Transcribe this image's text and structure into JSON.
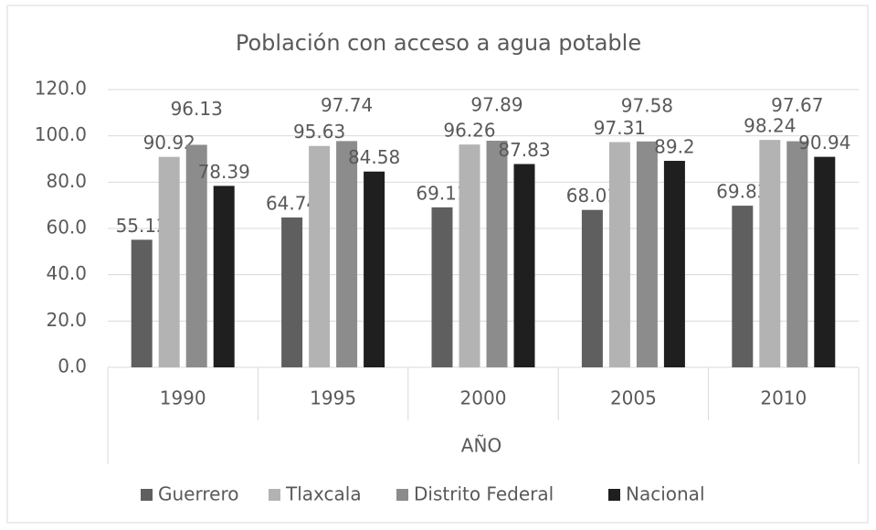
{
  "chart_data": {
    "type": "bar",
    "title": "Población con acceso a agua potable",
    "x_label": "AÑO",
    "categories": [
      "1990",
      "1995",
      "2000",
      "2005",
      "2010"
    ],
    "series": [
      {
        "name": "Guerrero",
        "color": "#5f5f5f",
        "values": [
          55.12,
          64.74,
          69.11,
          68.01,
          69.83
        ]
      },
      {
        "name": "Tlaxcala",
        "color": "#b3b3b3",
        "values": [
          90.92,
          95.63,
          96.26,
          97.31,
          98.24
        ]
      },
      {
        "name": "Distrito Federal",
        "color": "#8c8c8c",
        "values": [
          96.13,
          97.74,
          97.89,
          97.58,
          97.67
        ]
      },
      {
        "name": "Nacional",
        "color": "#1f1f1f",
        "values": [
          78.39,
          84.58,
          87.83,
          89.2,
          90.94
        ]
      }
    ],
    "ylim": [
      0,
      120
    ],
    "yticks": [
      {
        "value": 0,
        "label": "0.0"
      },
      {
        "value": 20,
        "label": "20.0"
      },
      {
        "value": 40,
        "label": "40.0"
      },
      {
        "value": 60,
        "label": "60.0"
      },
      {
        "value": 80,
        "label": "80.0"
      },
      {
        "value": 100,
        "label": "100.0"
      },
      {
        "value": 120,
        "label": "120.0"
      }
    ],
    "grid": true,
    "legend": "bottom"
  }
}
